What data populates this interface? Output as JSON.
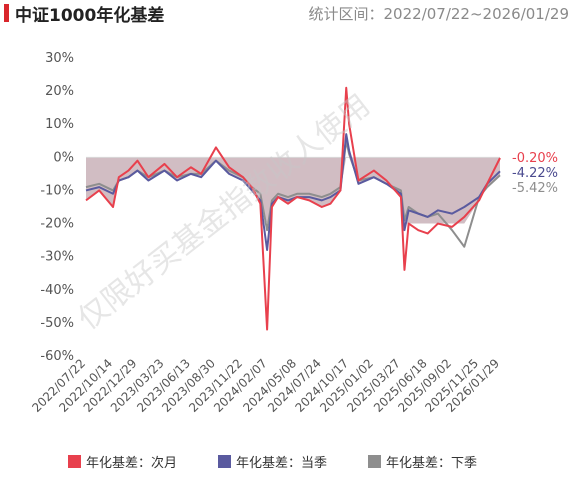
{
  "header": {
    "title": "中证1000年化基差",
    "subtitle": "统计区间：2022/07/22~2026/01/29"
  },
  "watermark": "仅限好买基金指数收人使用",
  "legend": [
    {
      "label": "年化基差：次月",
      "color": "#e8404d"
    },
    {
      "label": "年化基差：当季",
      "color": "#5a5a9f"
    },
    {
      "label": "年化基差：下季",
      "color": "#8e8e8e"
    }
  ],
  "colors": {
    "shade": "#c9b1b9",
    "zero_line": "#d9d9d9"
  },
  "chart_data": {
    "type": "line",
    "title": "中证1000年化基差",
    "subtitle": "统计区间：2022/07/22~2026/01/29",
    "x_range": [
      "2022/07/22",
      "2026/01/29"
    ],
    "ylim": [
      -60,
      30
    ],
    "y_ticks": [
      30,
      20,
      10,
      0,
      -10,
      -20,
      -30,
      -40,
      -50,
      -60
    ],
    "y_tick_labels": [
      "30%",
      "20%",
      "10%",
      "0%",
      "-10%",
      "-20%",
      "-30%",
      "-40%",
      "-50%",
      "-60%"
    ],
    "x_tick_labels": [
      "2022/07/22",
      "2022/10/14",
      "2022/12/29",
      "2023/03/23",
      "2023/06/13",
      "2023/08/30",
      "2023/11/22",
      "2024/02/07",
      "2024/05/08",
      "2024/07/24",
      "2024/10/17",
      "2025/01/02",
      "2025/03/27",
      "2025/06/18",
      "2025/09/02",
      "2025/11/25",
      "2026/01/29"
    ],
    "legend_position": "bottom",
    "grid": false,
    "end_labels": [
      {
        "text": "-0.20%",
        "value": -0.2,
        "color": "#e8404d"
      },
      {
        "text": "-4.22%",
        "value": -4.22,
        "color": "#4a4a8f"
      },
      {
        "text": "-5.42%",
        "value": -5.42,
        "color": "#8e8e8e"
      }
    ],
    "series": [
      {
        "name": "年化基差：次月",
        "color": "#e8404d",
        "x": [
          "2022/07/22",
          "2022/09/01",
          "2022/10/14",
          "2022/11/01",
          "2022/12/01",
          "2022/12/29",
          "2023/02/01",
          "2023/03/23",
          "2023/05/01",
          "2023/06/13",
          "2023/07/15",
          "2023/08/30",
          "2023/10/10",
          "2023/11/22",
          "2023/12/20",
          "2024/01/15",
          "2024/02/05",
          "2024/02/20",
          "2024/03/10",
          "2024/04/10",
          "2024/05/08",
          "2024/06/15",
          "2024/07/24",
          "2024/08/20",
          "2024/09/20",
          "2024/10/08",
          "2024/10/17",
          "2024/11/15",
          "2025/01/02",
          "2025/02/10",
          "2025/03/27",
          "2025/04/07",
          "2025/04/20",
          "2025/05/20",
          "2025/06/18",
          "2025/07/20",
          "2025/09/02",
          "2025/10/10",
          "2025/11/25",
          "2025/12/20",
          "2026/01/29"
        ],
        "values": [
          -13,
          -10,
          -15,
          -6,
          -4,
          -1,
          -6,
          -2,
          -6,
          -3,
          -5,
          3,
          -3,
          -6,
          -9,
          -14,
          -52,
          -15,
          -12,
          -14,
          -12,
          -13,
          -15,
          -14,
          -10,
          21,
          10,
          -7,
          -4,
          -7,
          -12,
          -34,
          -20,
          -22,
          -23,
          -20,
          -21,
          -18,
          -13,
          -8,
          -0.2
        ]
      },
      {
        "name": "年化基差：当季",
        "color": "#5a5a9f",
        "x": [
          "2022/07/22",
          "2022/09/01",
          "2022/10/14",
          "2022/11/01",
          "2022/12/01",
          "2022/12/29",
          "2023/02/01",
          "2023/03/23",
          "2023/05/01",
          "2023/06/13",
          "2023/07/15",
          "2023/08/30",
          "2023/10/10",
          "2023/11/22",
          "2023/12/20",
          "2024/01/15",
          "2024/02/05",
          "2024/02/20",
          "2024/03/10",
          "2024/04/10",
          "2024/05/08",
          "2024/06/15",
          "2024/07/24",
          "2024/08/20",
          "2024/09/20",
          "2024/10/08",
          "2024/10/17",
          "2024/11/15",
          "2025/01/02",
          "2025/02/10",
          "2025/03/27",
          "2025/04/07",
          "2025/04/20",
          "2025/05/20",
          "2025/06/18",
          "2025/07/20",
          "2025/09/02",
          "2025/10/10",
          "2025/11/25",
          "2025/12/20",
          "2026/01/29"
        ],
        "values": [
          -10,
          -9,
          -11,
          -7,
          -6,
          -4,
          -7,
          -4,
          -7,
          -5,
          -6,
          -1,
          -5,
          -7,
          -10,
          -13,
          -28,
          -14,
          -12,
          -13,
          -12,
          -12,
          -13,
          -12,
          -10,
          7,
          2,
          -8,
          -6,
          -8,
          -11,
          -22,
          -16,
          -17,
          -18,
          -16,
          -17,
          -15,
          -12,
          -8,
          -4.22
        ]
      },
      {
        "name": "年化基差：下季",
        "color": "#8e8e8e",
        "x": [
          "2022/07/22",
          "2022/09/01",
          "2022/10/14",
          "2022/11/01",
          "2022/12/01",
          "2022/12/29",
          "2023/02/01",
          "2023/03/23",
          "2023/05/01",
          "2023/06/13",
          "2023/07/15",
          "2023/08/30",
          "2023/10/10",
          "2023/11/22",
          "2023/12/20",
          "2024/01/15",
          "2024/02/05",
          "2024/02/20",
          "2024/03/10",
          "2024/04/10",
          "2024/05/08",
          "2024/06/15",
          "2024/07/24",
          "2024/08/20",
          "2024/09/20",
          "2024/10/08",
          "2024/10/17",
          "2024/11/15",
          "2025/01/02",
          "2025/02/10",
          "2025/03/27",
          "2025/04/07",
          "2025/04/20",
          "2025/05/20",
          "2025/06/18",
          "2025/07/20",
          "2025/09/02",
          "2025/10/10",
          "2025/11/25",
          "2025/12/20",
          "2026/01/29"
        ],
        "values": [
          -9,
          -8,
          -10,
          -7,
          -6,
          -4,
          -6,
          -4,
          -6,
          -5,
          -5,
          -1,
          -4,
          -6,
          -9,
          -11,
          -22,
          -13,
          -11,
          -12,
          -11,
          -11,
          -12,
          -11,
          -9,
          5,
          1,
          -7,
          -6,
          -8,
          -10,
          -19,
          -15,
          -17,
          -18,
          -17,
          -22,
          -27,
          -12,
          -9,
          -5.42
        ]
      }
    ]
  }
}
